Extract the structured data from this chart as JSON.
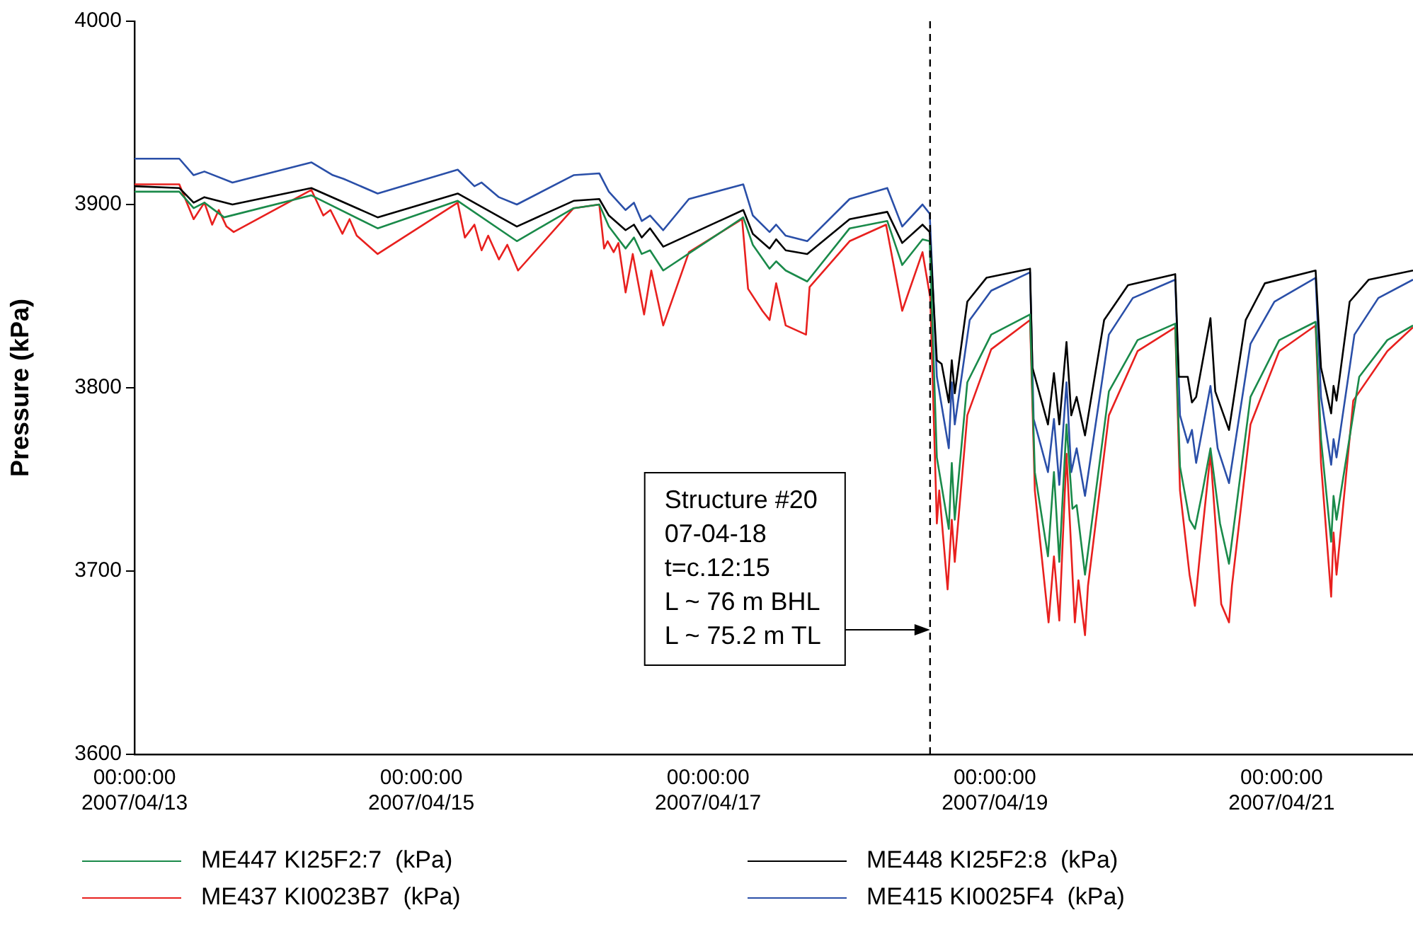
{
  "chart_data": {
    "type": "line",
    "ylabel": "Pressure (kPa)",
    "xlim": [
      "2007-04-13T00:00",
      "2007-04-21T22:00"
    ],
    "ylim": [
      3600,
      4000
    ],
    "yticks": [
      3600,
      3700,
      3800,
      3900,
      4000
    ],
    "xticks": [
      {
        "value": "2007-04-13",
        "label": "00:00:00\n2007/04/13"
      },
      {
        "value": "2007-04-15",
        "label": "00:00:00\n2007/04/15"
      },
      {
        "value": "2007-04-17",
        "label": "00:00:00\n2007/04/17"
      },
      {
        "value": "2007-04-19",
        "label": "00:00:00\n2007/04/19"
      },
      {
        "value": "2007-04-21",
        "label": "00:00:00\n2007/04/21"
      }
    ],
    "grid": false,
    "legend": "bottom",
    "marker": "none",
    "line_style": "solid",
    "ref_lines": [
      {
        "axis": "x",
        "value": "2007-04-18T13:10",
        "color": "#000000",
        "line_style": "dashed"
      }
    ],
    "annotations": [
      {
        "text": "Structure #20\n07-04-18\nt=c.12:15\nL ~ 76 m BHL\nL ~ 75.2 m TL",
        "x": "2007-04-18T13:10",
        "y": 3668
      }
    ],
    "series": [
      {
        "name": "ME447 KI25F2:7  (kPa)",
        "color": "#1a8a4a",
        "x": [
          "2007-04-13T00:00",
          "2007-04-13T07:30",
          "2007-04-13T09:54",
          "2007-04-13T11:42",
          "2007-04-13T15:00",
          "2007-04-14T05:36",
          "2007-04-14T16:42",
          "2007-04-15T06:06",
          "2007-04-15T16:00",
          "2007-04-16T01:30",
          "2007-04-16T05:48",
          "2007-04-16T07:24",
          "2007-04-16T10:12",
          "2007-04-16T11:36",
          "2007-04-16T12:54",
          "2007-04-16T14:18",
          "2007-04-16T16:30",
          "2007-04-17T05:54",
          "2007-04-17T07:30",
          "2007-04-17T10:18",
          "2007-04-17T11:24",
          "2007-04-17T13:00",
          "2007-04-17T16:36",
          "2007-04-17T23:42",
          "2007-04-18T06:00",
          "2007-04-18T08:30",
          "2007-04-18T11:54",
          "2007-04-18T13:06",
          "2007-04-18T14:18",
          "2007-04-18T16:18",
          "2007-04-18T16:48",
          "2007-04-18T17:18",
          "2007-04-18T19:24",
          "2007-04-18T23:24",
          "2007-04-19T05:54",
          "2007-04-19T06:42",
          "2007-04-19T08:54",
          "2007-04-19T09:54",
          "2007-04-19T10:48",
          "2007-04-19T12:00",
          "2007-04-19T13:00",
          "2007-04-19T13:42",
          "2007-04-19T15:06",
          "2007-04-19T19:06",
          "2007-04-19T23:54",
          "2007-04-20T06:12",
          "2007-04-20T07:00",
          "2007-04-20T08:36",
          "2007-04-20T09:30",
          "2007-04-20T10:48",
          "2007-04-20T12:06",
          "2007-04-20T13:42",
          "2007-04-20T15:12",
          "2007-04-20T18:48",
          "2007-04-20T23:36",
          "2007-04-21T05:42",
          "2007-04-21T06:36",
          "2007-04-21T08:18",
          "2007-04-21T08:42",
          "2007-04-21T09:12",
          "2007-04-21T13:00",
          "2007-04-21T17:42",
          "2007-04-21T22:00"
        ],
        "values": [
          3907,
          3907,
          3898,
          3901,
          3893,
          3905,
          3887,
          3902,
          3880,
          3898,
          3900,
          3888,
          3876,
          3882,
          3873,
          3875,
          3864,
          3893,
          3878,
          3865,
          3869,
          3864,
          3858,
          3887,
          3891,
          3867,
          3881,
          3880,
          3762,
          3723,
          3759,
          3728,
          3803,
          3829,
          3840,
          3754,
          3708,
          3754,
          3705,
          3780,
          3734,
          3736,
          3698,
          3798,
          3826,
          3835,
          3757,
          3728,
          3723,
          3744,
          3767,
          3726,
          3704,
          3795,
          3826,
          3836,
          3772,
          3716,
          3741,
          3728,
          3806,
          3826,
          3834
        ]
      },
      {
        "name": "ME448 KI25F2:8  (kPa)",
        "color": "#000000",
        "x": [
          "2007-04-13T00:00",
          "2007-04-13T07:30",
          "2007-04-13T09:54",
          "2007-04-13T11:42",
          "2007-04-13T16:24",
          "2007-04-14T05:36",
          "2007-04-14T16:42",
          "2007-04-15T06:06",
          "2007-04-15T16:00",
          "2007-04-16T01:30",
          "2007-04-16T05:48",
          "2007-04-16T07:24",
          "2007-04-16T10:12",
          "2007-04-16T11:36",
          "2007-04-16T12:54",
          "2007-04-16T14:18",
          "2007-04-16T16:30",
          "2007-04-17T05:54",
          "2007-04-17T07:30",
          "2007-04-17T10:18",
          "2007-04-17T11:24",
          "2007-04-17T13:00",
          "2007-04-17T16:36",
          "2007-04-17T23:42",
          "2007-04-18T06:00",
          "2007-04-18T08:30",
          "2007-04-18T11:54",
          "2007-04-18T13:06",
          "2007-04-18T14:18",
          "2007-04-18T15:06",
          "2007-04-18T16:18",
          "2007-04-18T16:48",
          "2007-04-18T17:18",
          "2007-04-18T19:24",
          "2007-04-18T22:36",
          "2007-04-19T05:54",
          "2007-04-19T06:18",
          "2007-04-19T08:54",
          "2007-04-19T09:54",
          "2007-04-19T10:48",
          "2007-04-19T12:00",
          "2007-04-19T12:48",
          "2007-04-19T13:42",
          "2007-04-19T15:06",
          "2007-04-19T18:18",
          "2007-04-19T22:18",
          "2007-04-20T06:12",
          "2007-04-20T06:48",
          "2007-04-20T08:18",
          "2007-04-20T09:00",
          "2007-04-20T09:42",
          "2007-04-20T12:06",
          "2007-04-20T12:54",
          "2007-04-20T15:12",
          "2007-04-20T18:00",
          "2007-04-20T21:12",
          "2007-04-21T05:42",
          "2007-04-21T06:36",
          "2007-04-21T08:18",
          "2007-04-21T08:42",
          "2007-04-21T09:12",
          "2007-04-21T11:24",
          "2007-04-21T14:36",
          "2007-04-21T22:00"
        ],
        "values": [
          3910,
          3909,
          3901,
          3904,
          3900,
          3909,
          3893,
          3906,
          3888,
          3902,
          3903,
          3894,
          3886,
          3889,
          3882,
          3887,
          3877,
          3897,
          3884,
          3876,
          3881,
          3875,
          3873,
          3892,
          3896,
          3879,
          3889,
          3885,
          3815,
          3813,
          3792,
          3815,
          3797,
          3847,
          3860,
          3865,
          3811,
          3780,
          3808,
          3780,
          3825,
          3785,
          3795,
          3774,
          3837,
          3856,
          3862,
          3806,
          3806,
          3792,
          3795,
          3838,
          3798,
          3777,
          3837,
          3857,
          3864,
          3811,
          3786,
          3801,
          3793,
          3847,
          3859,
          3864
        ]
      },
      {
        "name": "ME437 KI0023B7  (kPa)",
        "color": "#e8201e",
        "x": [
          "2007-04-13T00:00",
          "2007-04-13T07:30",
          "2007-04-13T09:54",
          "2007-04-13T11:42",
          "2007-04-13T13:00",
          "2007-04-13T14:06",
          "2007-04-13T15:24",
          "2007-04-13T16:36",
          "2007-04-14T05:36",
          "2007-04-14T07:36",
          "2007-04-14T08:48",
          "2007-04-14T10:48",
          "2007-04-14T12:00",
          "2007-04-14T13:12",
          "2007-04-14T16:42",
          "2007-04-15T06:06",
          "2007-04-15T07:18",
          "2007-04-15T08:54",
          "2007-04-15T10:06",
          "2007-04-15T11:12",
          "2007-04-15T13:00",
          "2007-04-15T14:24",
          "2007-04-15T16:12",
          "2007-04-16T01:30",
          "2007-04-16T05:48",
          "2007-04-16T06:36",
          "2007-04-16T07:12",
          "2007-04-16T08:12",
          "2007-04-16T09:00",
          "2007-04-16T10:12",
          "2007-04-16T11:24",
          "2007-04-16T13:18",
          "2007-04-16T14:30",
          "2007-04-16T16:30",
          "2007-04-16T20:48",
          "2007-04-17T05:42",
          "2007-04-17T06:42",
          "2007-04-17T09:06",
          "2007-04-17T10:18",
          "2007-04-17T11:24",
          "2007-04-17T13:00",
          "2007-04-17T16:24",
          "2007-04-17T17:00",
          "2007-04-17T23:42",
          "2007-04-18T05:48",
          "2007-04-18T08:30",
          "2007-04-18T11:54",
          "2007-04-18T13:12",
          "2007-04-18T14:18",
          "2007-04-18T14:42",
          "2007-04-18T16:06",
          "2007-04-18T16:48",
          "2007-04-18T17:18",
          "2007-04-18T19:24",
          "2007-04-18T23:24",
          "2007-04-19T05:54",
          "2007-04-19T06:42",
          "2007-04-19T09:00",
          "2007-04-19T09:54",
          "2007-04-19T10:48",
          "2007-04-19T12:00",
          "2007-04-19T13:24",
          "2007-04-19T14:00",
          "2007-04-19T15:06",
          "2007-04-19T15:36",
          "2007-04-19T19:06",
          "2007-04-19T23:54",
          "2007-04-20T06:12",
          "2007-04-20T07:00",
          "2007-04-20T08:36",
          "2007-04-20T09:30",
          "2007-04-20T10:18",
          "2007-04-20T12:06",
          "2007-04-20T13:54",
          "2007-04-20T15:12",
          "2007-04-20T15:42",
          "2007-04-20T18:48",
          "2007-04-20T23:36",
          "2007-04-21T05:42",
          "2007-04-21T06:36",
          "2007-04-21T08:18",
          "2007-04-21T08:42",
          "2007-04-21T09:12",
          "2007-04-21T12:00",
          "2007-04-21T17:42",
          "2007-04-21T22:00"
        ],
        "values": [
          3911,
          3911,
          3892,
          3901,
          3889,
          3897,
          3888,
          3885,
          3908,
          3894,
          3897,
          3884,
          3892,
          3883,
          3873,
          3901,
          3882,
          3889,
          3875,
          3883,
          3870,
          3878,
          3864,
          3898,
          3900,
          3876,
          3880,
          3874,
          3879,
          3852,
          3873,
          3840,
          3864,
          3834,
          3874,
          3892,
          3854,
          3842,
          3837,
          3857,
          3834,
          3829,
          3855,
          3880,
          3889,
          3842,
          3874,
          3849,
          3726,
          3744,
          3690,
          3728,
          3705,
          3785,
          3821,
          3837,
          3744,
          3672,
          3708,
          3673,
          3764,
          3672,
          3695,
          3665,
          3692,
          3785,
          3820,
          3833,
          3744,
          3698,
          3681,
          3708,
          3764,
          3682,
          3672,
          3692,
          3780,
          3820,
          3834,
          3759,
          3686,
          3721,
          3698,
          3793,
          3820,
          3833
        ]
      },
      {
        "name": "ME415 KI0025F4  (kPa)",
        "color": "#2a4fa8",
        "x": [
          "2007-04-13T00:00",
          "2007-04-13T07:30",
          "2007-04-13T09:54",
          "2007-04-13T11:42",
          "2007-04-13T16:24",
          "2007-04-14T05:36",
          "2007-04-14T09:12",
          "2007-04-14T11:00",
          "2007-04-14T16:42",
          "2007-04-15T06:06",
          "2007-04-15T08:54",
          "2007-04-15T10:06",
          "2007-04-15T13:00",
          "2007-04-15T16:00",
          "2007-04-16T01:30",
          "2007-04-16T05:48",
          "2007-04-16T07:24",
          "2007-04-16T10:12",
          "2007-04-16T11:36",
          "2007-04-16T12:54",
          "2007-04-16T14:18",
          "2007-04-16T16:30",
          "2007-04-16T20:48",
          "2007-04-17T05:54",
          "2007-04-17T07:30",
          "2007-04-17T10:18",
          "2007-04-17T11:24",
          "2007-04-17T13:00",
          "2007-04-17T16:36",
          "2007-04-17T23:42",
          "2007-04-18T06:00",
          "2007-04-18T08:30",
          "2007-04-18T11:54",
          "2007-04-18T13:06",
          "2007-04-18T14:18",
          "2007-04-18T16:18",
          "2007-04-18T16:48",
          "2007-04-18T17:18",
          "2007-04-18T19:48",
          "2007-04-18T23:24",
          "2007-04-19T05:54",
          "2007-04-19T06:30",
          "2007-04-19T08:54",
          "2007-04-19T09:54",
          "2007-04-19T10:48",
          "2007-04-19T12:00",
          "2007-04-19T12:48",
          "2007-04-19T13:42",
          "2007-04-19T15:06",
          "2007-04-19T19:06",
          "2007-04-19T23:06",
          "2007-04-20T06:12",
          "2007-04-20T07:00",
          "2007-04-20T08:18",
          "2007-04-20T09:00",
          "2007-04-20T09:42",
          "2007-04-20T12:06",
          "2007-04-20T13:18",
          "2007-04-20T15:12",
          "2007-04-20T18:48",
          "2007-04-20T22:48",
          "2007-04-21T05:42",
          "2007-04-21T06:36",
          "2007-04-21T08:18",
          "2007-04-21T08:42",
          "2007-04-21T09:12",
          "2007-04-21T12:12",
          "2007-04-21T16:12",
          "2007-04-21T22:00"
        ],
        "values": [
          3925,
          3925,
          3916,
          3918,
          3912,
          3923,
          3916,
          3914,
          3906,
          3919,
          3910,
          3912,
          3904,
          3900,
          3916,
          3917,
          3907,
          3897,
          3901,
          3891,
          3894,
          3886,
          3903,
          3911,
          3894,
          3885,
          3889,
          3883,
          3880,
          3903,
          3909,
          3888,
          3900,
          3895,
          3806,
          3767,
          3803,
          3780,
          3837,
          3853,
          3863,
          3783,
          3754,
          3783,
          3747,
          3803,
          3754,
          3767,
          3741,
          3829,
          3849,
          3859,
          3785,
          3770,
          3777,
          3759,
          3801,
          3767,
          3748,
          3824,
          3847,
          3860,
          3795,
          3758,
          3772,
          3762,
          3829,
          3849,
          3859
        ]
      }
    ]
  }
}
